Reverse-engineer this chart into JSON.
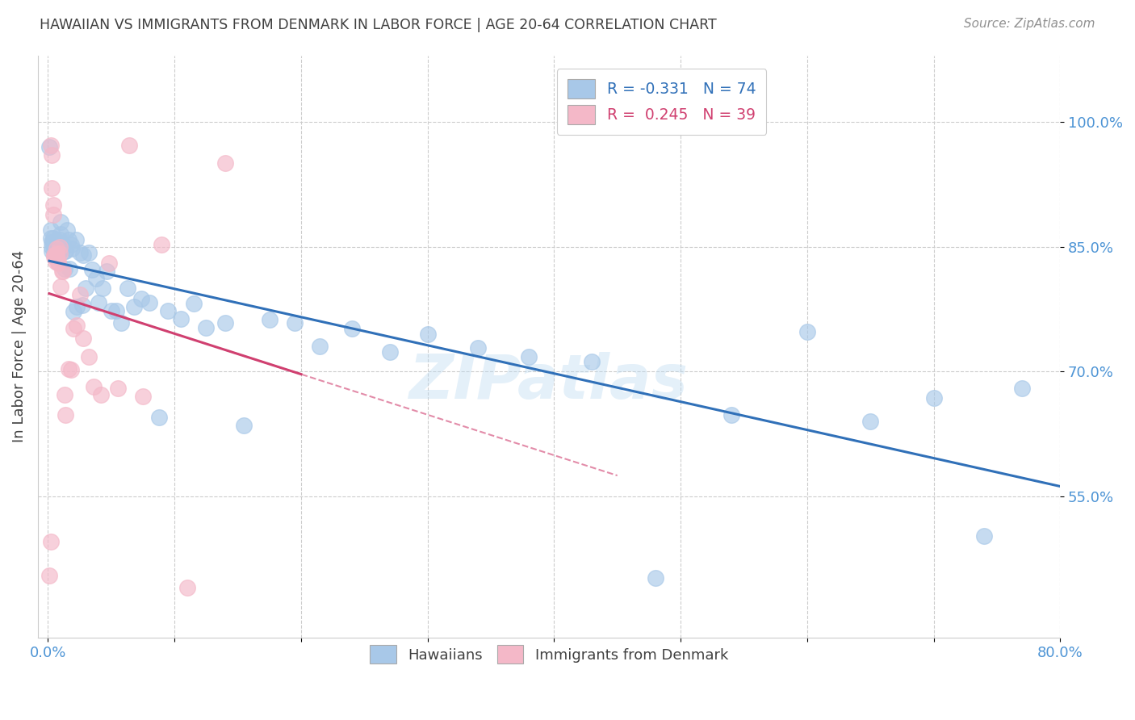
{
  "title": "HAWAIIAN VS IMMIGRANTS FROM DENMARK IN LABOR FORCE | AGE 20-64 CORRELATION CHART",
  "source": "Source: ZipAtlas.com",
  "ylabel": "In Labor Force | Age 20-64",
  "yticks": [
    1.0,
    0.85,
    0.7,
    0.55
  ],
  "ytick_labels": [
    "100.0%",
    "85.0%",
    "70.0%",
    "55.0%"
  ],
  "blue_R": -0.331,
  "blue_N": 74,
  "pink_R": 0.245,
  "pink_N": 39,
  "blue_label": "Hawaiians",
  "pink_label": "Immigrants from Denmark",
  "blue_color": "#a8c8e8",
  "pink_color": "#f4b8c8",
  "blue_line_color": "#3070b8",
  "pink_line_color": "#d04070",
  "blue_x": [
    0.001,
    0.002,
    0.002,
    0.003,
    0.003,
    0.003,
    0.004,
    0.004,
    0.005,
    0.005,
    0.005,
    0.006,
    0.006,
    0.007,
    0.007,
    0.008,
    0.008,
    0.009,
    0.009,
    0.01,
    0.01,
    0.011,
    0.012,
    0.013,
    0.013,
    0.014,
    0.015,
    0.016,
    0.017,
    0.018,
    0.019,
    0.02,
    0.022,
    0.023,
    0.025,
    0.027,
    0.028,
    0.03,
    0.032,
    0.035,
    0.038,
    0.04,
    0.043,
    0.046,
    0.05,
    0.054,
    0.058,
    0.063,
    0.068,
    0.074,
    0.08,
    0.088,
    0.095,
    0.105,
    0.115,
    0.125,
    0.14,
    0.155,
    0.175,
    0.195,
    0.215,
    0.24,
    0.27,
    0.3,
    0.34,
    0.38,
    0.43,
    0.48,
    0.54,
    0.6,
    0.65,
    0.7,
    0.74,
    0.77
  ],
  "blue_y": [
    0.97,
    0.87,
    0.86,
    0.855,
    0.85,
    0.845,
    0.86,
    0.855,
    0.855,
    0.85,
    0.845,
    0.855,
    0.848,
    0.852,
    0.845,
    0.855,
    0.848,
    0.858,
    0.85,
    0.88,
    0.865,
    0.848,
    0.853,
    0.823,
    0.845,
    0.845,
    0.87,
    0.858,
    0.823,
    0.852,
    0.848,
    0.772,
    0.858,
    0.778,
    0.843,
    0.78,
    0.84,
    0.8,
    0.843,
    0.822,
    0.812,
    0.783,
    0.8,
    0.82,
    0.773,
    0.773,
    0.758,
    0.8,
    0.778,
    0.787,
    0.783,
    0.645,
    0.773,
    0.763,
    0.782,
    0.753,
    0.758,
    0.635,
    0.762,
    0.758,
    0.73,
    0.752,
    0.723,
    0.745,
    0.728,
    0.718,
    0.712,
    0.452,
    0.648,
    0.748,
    0.64,
    0.668,
    0.502,
    0.68
  ],
  "pink_x": [
    0.001,
    0.002,
    0.002,
    0.003,
    0.003,
    0.004,
    0.004,
    0.005,
    0.005,
    0.006,
    0.006,
    0.007,
    0.007,
    0.007,
    0.008,
    0.008,
    0.009,
    0.009,
    0.01,
    0.011,
    0.012,
    0.013,
    0.014,
    0.016,
    0.018,
    0.02,
    0.023,
    0.025,
    0.028,
    0.032,
    0.036,
    0.042,
    0.048,
    0.055,
    0.064,
    0.075,
    0.09,
    0.11,
    0.14
  ],
  "pink_y": [
    0.455,
    0.495,
    0.972,
    0.96,
    0.92,
    0.9,
    0.888,
    0.84,
    0.838,
    0.832,
    0.84,
    0.842,
    0.848,
    0.838,
    0.832,
    0.83,
    0.842,
    0.85,
    0.802,
    0.82,
    0.82,
    0.672,
    0.648,
    0.703,
    0.702,
    0.752,
    0.755,
    0.792,
    0.74,
    0.718,
    0.682,
    0.672,
    0.83,
    0.68,
    0.972,
    0.67,
    0.852,
    0.44,
    0.95
  ],
  "watermark": "ZIPatlas",
  "background_color": "#ffffff",
  "grid_color": "#cccccc",
  "axis_color": "#4d94d5",
  "title_color": "#404040",
  "source_color": "#909090",
  "xlim": [
    -0.008,
    0.8
  ],
  "ylim": [
    0.38,
    1.08
  ],
  "xtick_positions": [
    0.0,
    0.1,
    0.2,
    0.3,
    0.4,
    0.5,
    0.6,
    0.7,
    0.8
  ]
}
